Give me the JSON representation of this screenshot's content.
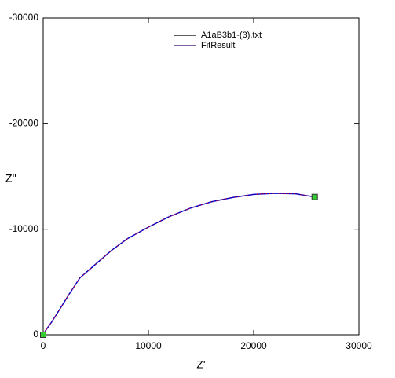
{
  "chart_data": {
    "type": "line",
    "x_label": "Z'",
    "y_label": "Z''",
    "xlim": [
      0,
      30000
    ],
    "xticks": [
      0,
      10000,
      20000,
      30000
    ],
    "ylim": [
      0,
      -30000
    ],
    "yticks": [
      0,
      -10000,
      -20000,
      -30000
    ],
    "series": [
      {
        "name": "A1aB3b1-(3).txt",
        "color": "#0000cc",
        "x": [
          0,
          300,
          800,
          1500,
          2500,
          3500,
          5000,
          6500,
          8000,
          10000,
          12000,
          14000,
          16000,
          18000,
          20000,
          22000,
          24000,
          25800
        ],
        "values": [
          0,
          -500,
          -1200,
          -2300,
          -3900,
          -5400,
          -6700,
          -8000,
          -9100,
          -10200,
          -11200,
          -12000,
          -12600,
          -13000,
          -13300,
          -13400,
          -13350,
          -13050
        ]
      },
      {
        "name": "FitResult",
        "color": "#cc0033",
        "x": [
          0,
          300,
          800,
          1500,
          2500,
          3500,
          5000,
          6500,
          8000,
          10000,
          12000,
          14000,
          16000,
          18000,
          20000,
          22000,
          24000,
          25800
        ],
        "values": [
          0,
          -500,
          -1200,
          -2300,
          -3900,
          -5400,
          -6700,
          -8000,
          -9100,
          -10200,
          -11200,
          -12000,
          -12600,
          -13000,
          -13300,
          -13400,
          -13350,
          -13050
        ]
      }
    ],
    "marker_color": "#33cc33"
  }
}
